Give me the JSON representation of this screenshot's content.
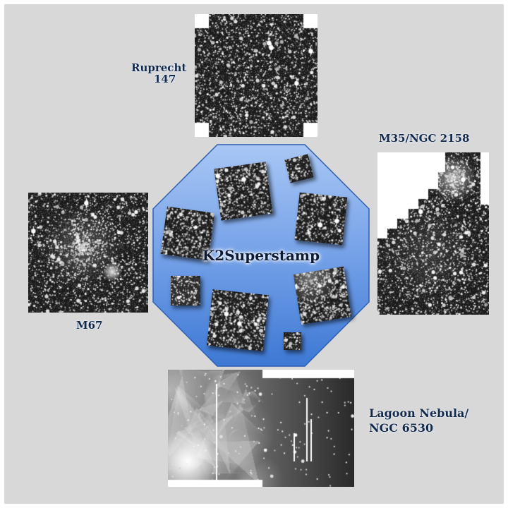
{
  "center": {
    "title": "K2Superstamp"
  },
  "labels": {
    "ruprecht": [
      "Ruprecht",
      "147"
    ],
    "m35": "M35/NGC 2158",
    "m67": "M67",
    "lagoon": [
      "Lagoon Nebula/",
      "NGC 6530"
    ]
  },
  "colors": {
    "background": "#d8d8d8",
    "octagon_light": "#a9c7f5",
    "octagon_dark": "#3d78d4",
    "label_text": "#13294a"
  }
}
